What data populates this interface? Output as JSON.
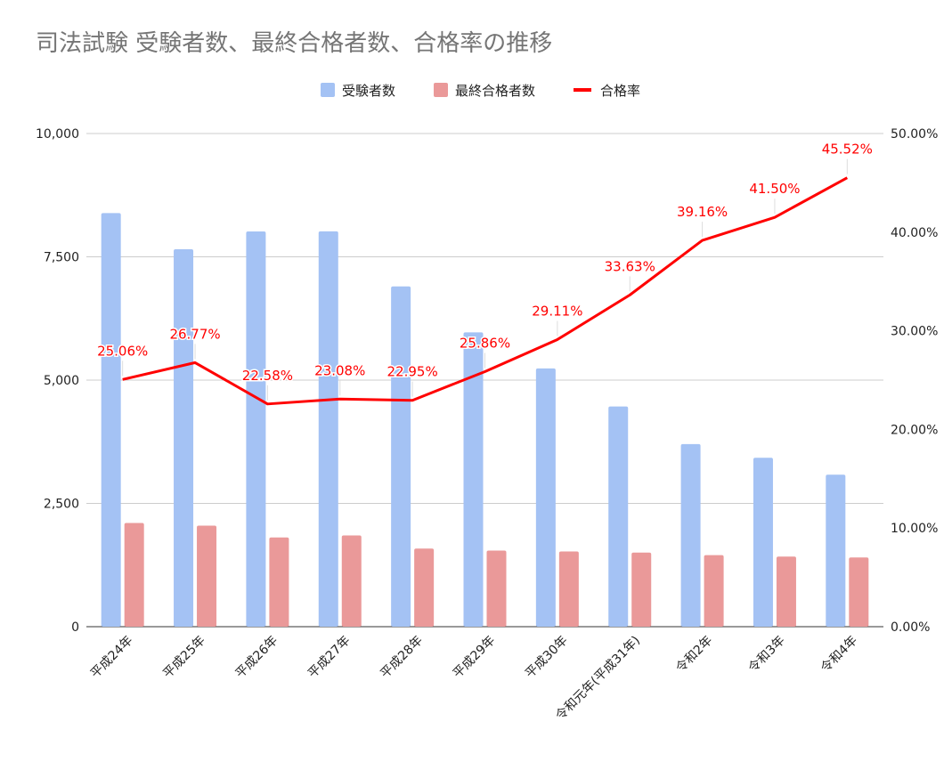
{
  "chart_data": {
    "type": "bar",
    "title": "司法試験 受験者数、最終合格者数、合格率の推移",
    "categories": [
      "平成24年",
      "平成25年",
      "平成26年",
      "平成27年",
      "平成28年",
      "平成29年",
      "平成30年",
      "令和元年(平成31年)",
      "令和2年",
      "令和3年",
      "令和4年"
    ],
    "series": [
      {
        "name": "受験者数",
        "type": "bar",
        "axis": "left",
        "color": "#a4c2f4",
        "values": [
          8387,
          7653,
          8015,
          8016,
          6899,
          5967,
          5238,
          4466,
          3703,
          3424,
          3082
        ]
      },
      {
        "name": "最終合格者数",
        "type": "bar",
        "axis": "left",
        "color": "#ea9999",
        "values": [
          2102,
          2049,
          1810,
          1850,
          1583,
          1543,
          1525,
          1502,
          1450,
          1421,
          1403
        ]
      },
      {
        "name": "合格率",
        "type": "line",
        "axis": "right",
        "color": "#ff0000",
        "values": [
          25.06,
          26.77,
          22.58,
          23.08,
          22.95,
          25.86,
          29.11,
          33.63,
          39.16,
          41.5,
          45.52
        ],
        "labels": [
          "25.06%",
          "26.77%",
          "22.58%",
          "23.08%",
          "22.95%",
          "25.86%",
          "29.11%",
          "33.63%",
          "39.16%",
          "41.50%",
          "45.52%"
        ]
      }
    ],
    "y_left": {
      "min": 0,
      "max": 10000,
      "ticks": [
        0,
        2500,
        5000,
        7500,
        10000
      ],
      "tick_labels": [
        "0",
        "2,500",
        "5,000",
        "7,500",
        "10,000"
      ]
    },
    "y_right": {
      "min": 0,
      "max": 50,
      "ticks": [
        0,
        10,
        20,
        30,
        40,
        50
      ],
      "tick_labels": [
        "0.00%",
        "10.00%",
        "20.00%",
        "30.00%",
        "40.00%",
        "50.00%"
      ]
    },
    "grid": true,
    "legend_position": "top-center",
    "xlabel": "",
    "ylabel": ""
  }
}
